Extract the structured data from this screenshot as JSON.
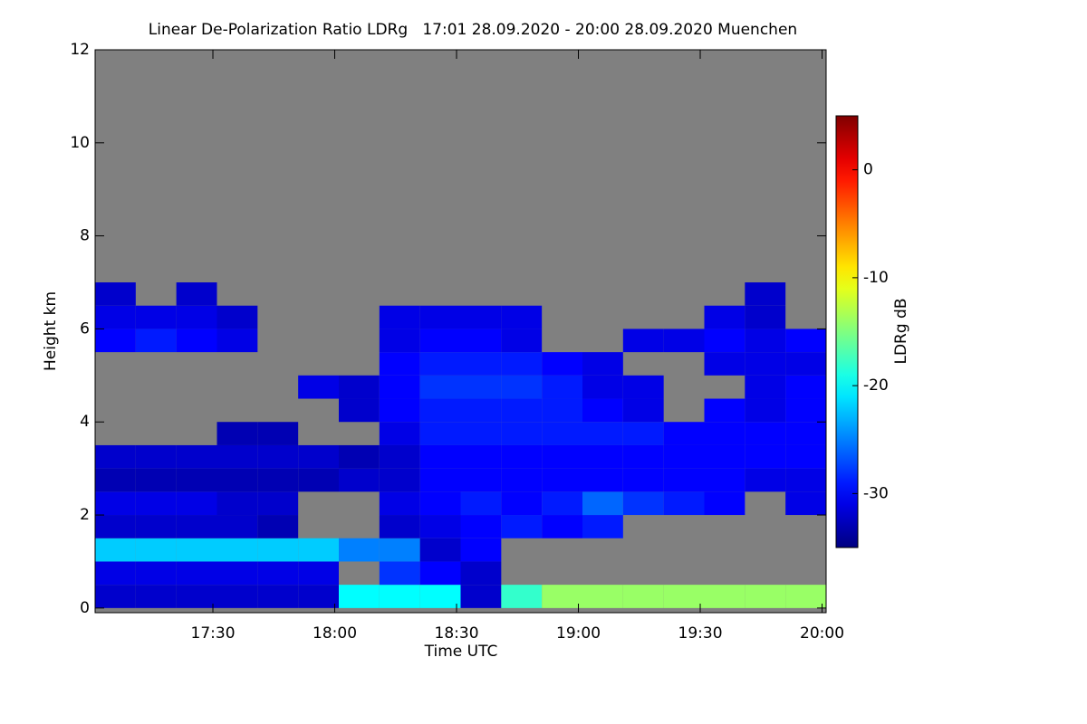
{
  "chart_data": {
    "type": "heatmap",
    "title": "Linear De-Polarization Ratio LDRg   17:01 28.09.2020 - 20:00 28.09.2020 Muenchen",
    "x_label": "Time UTC",
    "y_label": "Height km",
    "colorbar_label": "LDRg dB",
    "xlim": [
      1021,
      1201
    ],
    "xticks": [
      {
        "value": 1050,
        "label": "17:30"
      },
      {
        "value": 1080,
        "label": "18:00"
      },
      {
        "value": 1110,
        "label": "18:30"
      },
      {
        "value": 1140,
        "label": "19:00"
      },
      {
        "value": 1170,
        "label": "19:30"
      },
      {
        "value": 1200,
        "label": "20:00"
      }
    ],
    "ylim": [
      -0.1,
      12
    ],
    "yticks": [
      0,
      2,
      4,
      6,
      8,
      10,
      12
    ],
    "zlim": [
      -35,
      5
    ],
    "zticks": [
      -30,
      -20,
      -10,
      0
    ],
    "colormap": "jet",
    "background": "#808080",
    "x": [
      1026,
      1036,
      1046,
      1056,
      1066,
      1076,
      1086,
      1096,
      1106,
      1116,
      1126,
      1136,
      1146,
      1156,
      1166,
      1176,
      1186,
      1196
    ],
    "y": [
      0.25,
      0.75,
      1.25,
      1.75,
      2.25,
      2.75,
      3.25,
      3.75,
      4.25,
      4.75,
      5.25,
      5.75,
      6.25,
      6.75
    ],
    "z": [
      [
        -32,
        -32,
        -32,
        -32,
        -32,
        -32,
        -20,
        -20,
        -20,
        -32,
        -18,
        -14,
        -14,
        -14,
        -14,
        -14,
        -14,
        -14
      ],
      [
        -31,
        -31,
        -31,
        -31,
        -31,
        -31,
        null,
        -28,
        -30,
        -32,
        null,
        null,
        null,
        null,
        null,
        null,
        null,
        null
      ],
      [
        -22,
        -22,
        -22,
        -22,
        -22,
        -22,
        -25,
        -25,
        -32,
        -30,
        null,
        null,
        null,
        null,
        null,
        null,
        null,
        null
      ],
      [
        -32,
        -32,
        -32,
        -32,
        -33,
        null,
        null,
        -32,
        -31,
        -30,
        -29,
        -30,
        -29,
        null,
        null,
        null,
        null,
        null
      ],
      [
        -31,
        -31,
        -31,
        -32,
        -32,
        null,
        null,
        -31,
        -30,
        -29,
        -30,
        -29,
        -26,
        -28,
        -29,
        -30,
        null,
        -31
      ],
      [
        -33,
        -33,
        -33,
        -33,
        -33,
        -33,
        -32,
        -32,
        -30,
        -30,
        -30,
        -30,
        -30,
        -30,
        -30,
        -30,
        -31,
        -31
      ],
      [
        -32,
        -32,
        -32,
        -32,
        -32,
        -32,
        -33,
        -32,
        -30,
        -30,
        -30,
        -30,
        -30,
        -30,
        -30,
        -30,
        -30,
        -30
      ],
      [
        null,
        null,
        null,
        -33,
        -33,
        null,
        null,
        -31,
        -29,
        -29,
        -29,
        -29,
        -29,
        -29,
        -30,
        -30,
        -30,
        -30
      ],
      [
        null,
        null,
        null,
        null,
        null,
        null,
        -32,
        -30,
        -29,
        -29,
        -29,
        -29,
        -30,
        -31,
        null,
        -30,
        -31,
        -30
      ],
      [
        null,
        null,
        null,
        null,
        null,
        -31,
        -32,
        -30,
        -28,
        -28,
        -28,
        -29,
        -31,
        -31,
        null,
        null,
        -31,
        -30
      ],
      [
        null,
        null,
        null,
        null,
        null,
        null,
        null,
        -30,
        -29,
        -29,
        -29,
        -30,
        -31,
        null,
        null,
        -31,
        -31,
        -31
      ],
      [
        -30,
        -29,
        -30,
        -31,
        null,
        null,
        null,
        -31,
        -30,
        -30,
        -31,
        null,
        null,
        -31,
        -31,
        -30,
        -31,
        -30
      ],
      [
        -31,
        -31,
        -31,
        -32,
        null,
        null,
        null,
        -31,
        -31,
        -31,
        -31,
        null,
        null,
        null,
        null,
        -31,
        -32,
        null
      ],
      [
        -32,
        null,
        -32,
        null,
        null,
        null,
        null,
        null,
        null,
        null,
        null,
        null,
        null,
        null,
        null,
        null,
        -32,
        null
      ]
    ]
  }
}
